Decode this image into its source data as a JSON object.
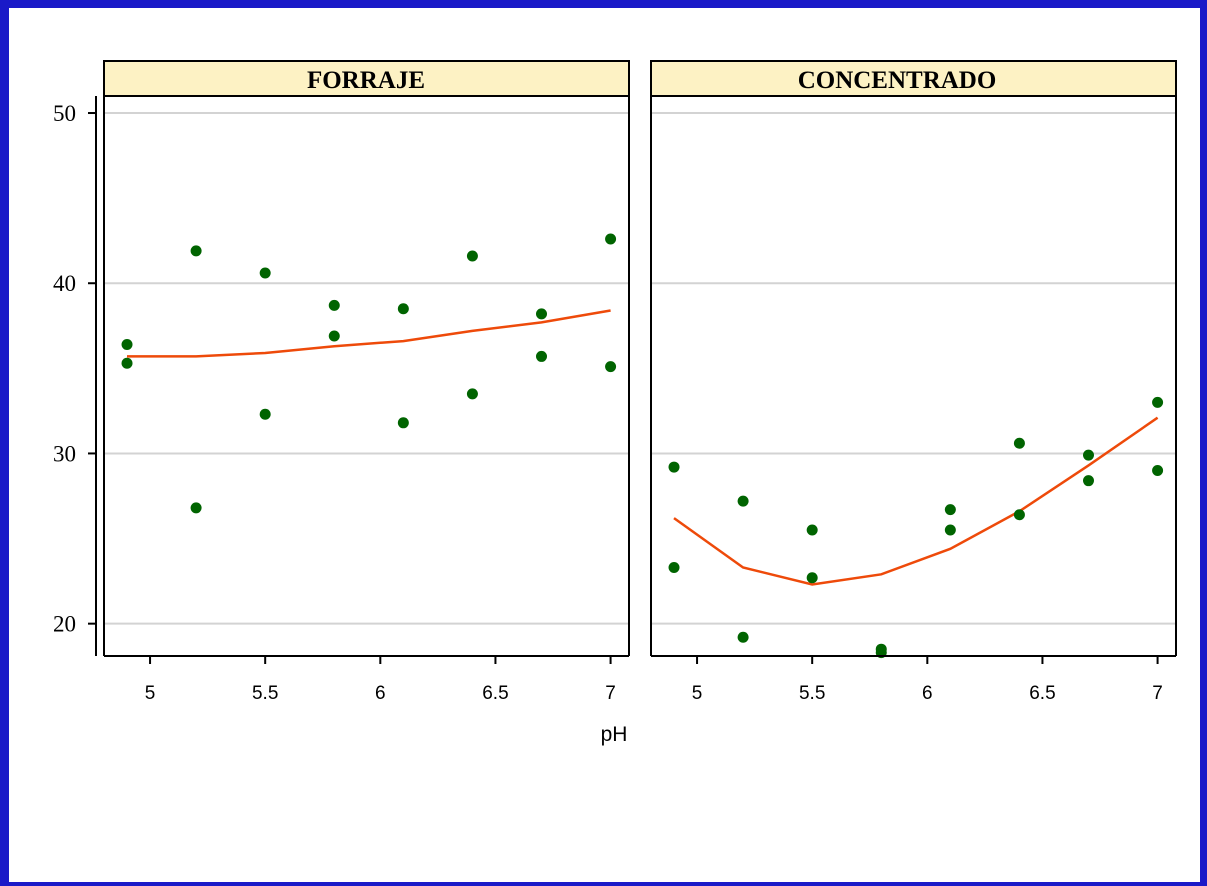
{
  "colors": {
    "frame": "#1a1ac8",
    "strip_background": "#fdf2c4",
    "point": "#006400",
    "line": "#ee4a0a",
    "grid": "#d3d3d3",
    "axis": "#000000"
  },
  "chart_data": {
    "type": "scatter",
    "xlabel": "pH",
    "ylabel": "",
    "xlim": [
      4.8,
      7.08
    ],
    "ylim": [
      18.1,
      51
    ],
    "xticks": [
      5,
      5.5,
      6,
      6.5,
      7
    ],
    "xtick_labels": [
      "5",
      "5.5",
      "6",
      "6.5",
      "7"
    ],
    "yticks": [
      20,
      30,
      40,
      50
    ],
    "ytick_labels": [
      "20",
      "30",
      "40",
      "50"
    ],
    "grid": "horizontal",
    "panels": [
      {
        "title": "FORRAJE",
        "points": {
          "x": [
            4.9,
            4.9,
            5.2,
            5.2,
            5.5,
            5.5,
            5.8,
            5.8,
            6.1,
            6.1,
            6.4,
            6.4,
            6.7,
            6.7,
            7.0,
            7.0
          ],
          "y": [
            36.4,
            35.3,
            41.9,
            26.8,
            40.6,
            32.3,
            38.7,
            36.9,
            38.5,
            31.8,
            41.6,
            33.5,
            38.2,
            35.7,
            42.6,
            35.1
          ]
        },
        "fit": {
          "x": [
            4.9,
            5.2,
            5.5,
            5.8,
            6.1,
            6.4,
            6.7,
            7.0
          ],
          "y": [
            35.7,
            35.7,
            35.9,
            36.3,
            36.6,
            37.2,
            37.7,
            38.4
          ]
        }
      },
      {
        "title": "CONCENTRADO",
        "points": {
          "x": [
            4.9,
            4.9,
            5.2,
            5.2,
            5.5,
            5.5,
            5.8,
            5.8,
            6.1,
            6.1,
            6.4,
            6.4,
            6.7,
            6.7,
            7.0,
            7.0
          ],
          "y": [
            29.2,
            23.3,
            27.2,
            19.2,
            25.5,
            22.7,
            18.5,
            18.3,
            26.7,
            25.5,
            30.6,
            26.4,
            29.9,
            28.4,
            33.0,
            29.0
          ]
        },
        "fit": {
          "x": [
            4.9,
            5.2,
            5.5,
            5.8,
            6.1,
            6.4,
            6.7,
            7.0
          ],
          "y": [
            26.2,
            23.3,
            22.3,
            22.9,
            24.4,
            26.6,
            29.3,
            32.1
          ]
        }
      }
    ]
  }
}
